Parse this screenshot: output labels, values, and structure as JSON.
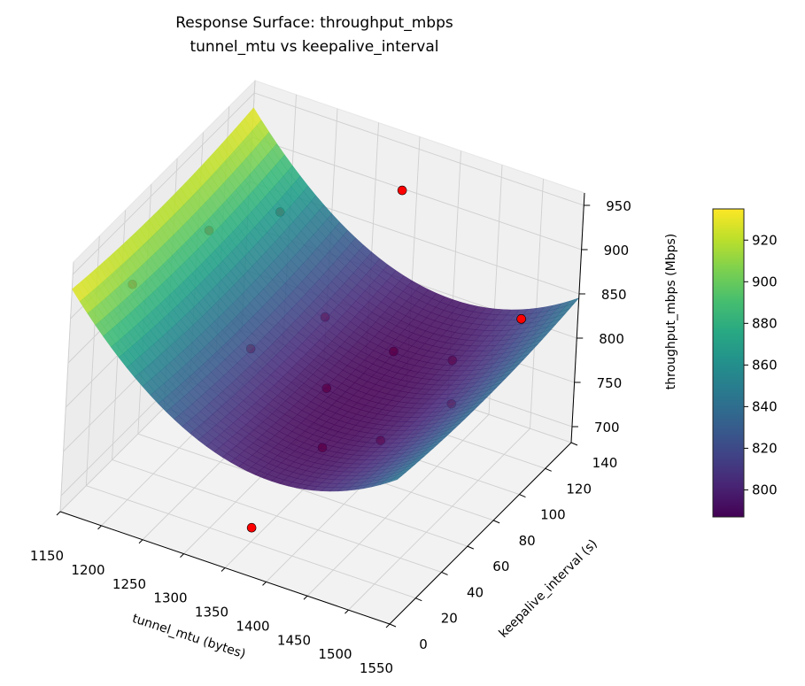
{
  "chart_data": {
    "type": "surface",
    "title": "Response Surface: throughput_mbps",
    "subtitle": "tunnel_mtu vs keepalive_interval",
    "xlabel": "tunnel_mtu (bytes)",
    "ylabel": "keepalive_interval (s)",
    "zlabel": "throughput_mbps (Mbps)",
    "xlim": [
      1150,
      1550
    ],
    "ylim": [
      0,
      140
    ],
    "zlim": [
      682,
      964
    ],
    "x_ticks": [
      1150,
      1200,
      1250,
      1300,
      1350,
      1400,
      1450,
      1500,
      1550
    ],
    "y_ticks": [
      0,
      20,
      40,
      60,
      80,
      100,
      120,
      140
    ],
    "z_ticks": [
      700,
      750,
      800,
      850,
      900,
      950
    ],
    "grid": true,
    "colormap": "viridis",
    "surface_model": {
      "form": "quadratic",
      "min_value": 787,
      "max_value": 935,
      "optimum_tunnel_mtu": 1400,
      "optimum_keepalive_interval": 70
    },
    "colorbar": {
      "range": [
        787,
        935
      ],
      "ticks": [
        800,
        820,
        840,
        860,
        880,
        900,
        920
      ],
      "placement": "right"
    },
    "points_color": "#ff0000",
    "points": [
      {
        "x": 1350,
        "y": 128,
        "z": 921
      },
      {
        "x": 1550,
        "y": 94,
        "z": 889
      },
      {
        "x": 1500,
        "y": 75,
        "z": 805
      },
      {
        "x": 1350,
        "y": 20,
        "z": 698
      },
      {
        "x": 1200,
        "y": 132,
        "z": 843
      },
      {
        "x": 1150,
        "y": 109,
        "z": 840
      },
      {
        "x": 1150,
        "y": 49,
        "z": 867
      },
      {
        "x": 1250,
        "y": 139,
        "z": 730
      },
      {
        "x": 1200,
        "y": 114,
        "z": 715
      },
      {
        "x": 1350,
        "y": 128,
        "z": 739
      },
      {
        "x": 1450,
        "y": 108,
        "z": 790
      },
      {
        "x": 1350,
        "y": 75,
        "z": 775
      },
      {
        "x": 1400,
        "y": 40,
        "z": 775
      },
      {
        "x": 1450,
        "y": 53,
        "z": 780
      }
    ]
  }
}
